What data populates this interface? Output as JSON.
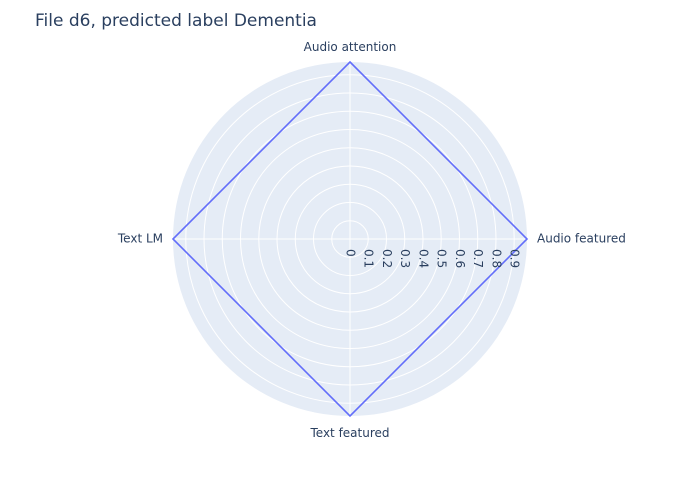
{
  "chart_data": {
    "type": "radar",
    "title": "File d6, predicted label Dementia",
    "theta": [
      "Audio attention",
      "Audio featured",
      "Text featured",
      "Text LM"
    ],
    "series": [
      {
        "values": [
          0.97,
          0.97,
          0.97,
          0.97
        ],
        "color": "#636efa",
        "closed": true
      }
    ],
    "radial_ticks": [
      "0",
      "0.1",
      "0.2",
      "0.3",
      "0.4",
      "0.5",
      "0.6",
      "0.7",
      "0.8",
      "0.9"
    ],
    "radial_range": [
      0,
      0.97
    ],
    "grid": true,
    "legend": "none",
    "colors": {
      "polar_bg": "#e5ecf6",
      "grid": "#ffffff",
      "text": "#2a3f5f",
      "line": "#636efa"
    }
  }
}
